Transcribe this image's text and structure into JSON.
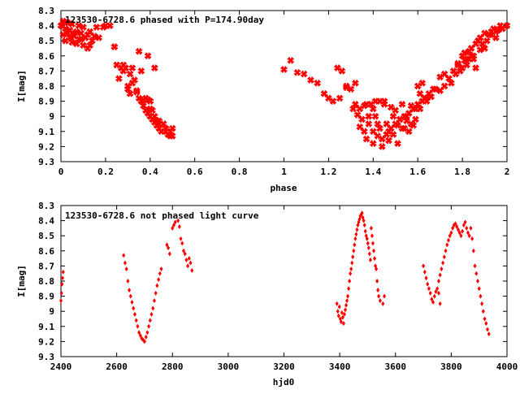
{
  "chart_data": [
    {
      "type": "scatter",
      "title": "123530-6728.6 phased with P=174.90day",
      "xlabel": "phase",
      "ylabel": "I[mag]",
      "xlim": [
        0,
        2
      ],
      "ylim": [
        8.3,
        9.3
      ],
      "y_inverted": true,
      "x_ticks": [
        "0",
        "0.2",
        "0.4",
        "0.6",
        "0.8",
        "1",
        "1.2",
        "1.4",
        "1.6",
        "1.8",
        "2"
      ],
      "y_ticks": [
        "8.3",
        "8.4",
        "8.5",
        "8.6",
        "8.7",
        "8.8",
        "8.9",
        "9",
        "9.1",
        "9.2",
        "9.3"
      ],
      "marker": "star",
      "color": "#ff0000",
      "series": [
        {
          "x": [
            0.0,
            0.01,
            0.01,
            0.02,
            0.02,
            0.03,
            0.03,
            0.04,
            0.04,
            0.05,
            0.05,
            0.06,
            0.07,
            0.07,
            0.08,
            0.08,
            0.09,
            0.1,
            0.1,
            0.11,
            0.12,
            0.12,
            0.13,
            0.14,
            0.15,
            0.17,
            0.19,
            0.22,
            0.24,
            0.25,
            0.27,
            0.28,
            0.3,
            0.31,
            0.32,
            0.34,
            0.35,
            0.36,
            0.37,
            0.38,
            0.39,
            0.4,
            0.4,
            0.41,
            0.42,
            0.43,
            0.44,
            0.45,
            0.46,
            0.47,
            0.48,
            0.49,
            0.5,
            0.5,
            0.29,
            0.31,
            0.33,
            0.34,
            0.36,
            0.37,
            0.38,
            0.39,
            0.4,
            0.41,
            0.42,
            0.43,
            0.44,
            0.35,
            0.39,
            0.42,
            0.02,
            0.05,
            0.09,
            0.13,
            0.16,
            0.2,
            0.24,
            0.28,
            0.32,
            0.36,
            0.4,
            0.44,
            0.47,
            0.49,
            0.26,
            0.3,
            1.0,
            1.03,
            1.06,
            1.09,
            1.12,
            1.15,
            1.18,
            1.2,
            1.22,
            1.24,
            1.26,
            1.28,
            1.3,
            1.31,
            1.32,
            1.33,
            1.34,
            1.35,
            1.36,
            1.37,
            1.38,
            1.39,
            1.4,
            1.4,
            1.41,
            1.42,
            1.43,
            1.44,
            1.45,
            1.46,
            1.47,
            1.48,
            1.49,
            1.5,
            1.51,
            1.52,
            1.53,
            1.54,
            1.55,
            1.56,
            1.57,
            1.58,
            1.59,
            1.6,
            1.61,
            1.62,
            1.64,
            1.66,
            1.68,
            1.7,
            1.72,
            1.74,
            1.76,
            1.77,
            1.78,
            1.79,
            1.8,
            1.81,
            1.82,
            1.83,
            1.84,
            1.85,
            1.86,
            1.87,
            1.88,
            1.89,
            1.9,
            1.91,
            1.92,
            1.93,
            1.94,
            1.95,
            1.96,
            1.97,
            1.98,
            2.0,
            1.36,
            1.38,
            1.4,
            1.42,
            1.44,
            1.46,
            1.48,
            1.5,
            1.52,
            1.54,
            1.56,
            1.58,
            1.6,
            1.62,
            1.64,
            1.34,
            1.37,
            1.41,
            1.45,
            1.49,
            1.53,
            1.57,
            1.61,
            1.65,
            1.7,
            1.75,
            1.8,
            1.85,
            1.9,
            1.95,
            1.25,
            1.28,
            1.32,
            1.43,
            1.47,
            1.51,
            1.55,
            1.59,
            1.63,
            1.67,
            1.72,
            1.78,
            1.83,
            1.88,
            1.93,
            1.81,
            1.84,
            1.86,
            1.79,
            1.82
          ],
          "y": [
            8.4,
            8.46,
            8.37,
            8.42,
            8.5,
            8.38,
            8.45,
            8.48,
            8.43,
            8.51,
            8.39,
            8.47,
            8.44,
            8.52,
            8.4,
            8.49,
            8.45,
            8.53,
            8.41,
            8.48,
            8.46,
            8.55,
            8.44,
            8.5,
            8.47,
            8.48,
            8.41,
            8.4,
            8.54,
            8.66,
            8.68,
            8.7,
            8.8,
            8.85,
            8.78,
            8.84,
            8.88,
            8.9,
            8.93,
            8.96,
            8.98,
            9.0,
            8.95,
            9.02,
            9.04,
            9.06,
            9.08,
            9.1,
            9.05,
            9.08,
            9.12,
            9.1,
            9.13,
            9.08,
            8.68,
            8.72,
            8.76,
            8.83,
            8.9,
            8.89,
            8.88,
            8.89,
            8.9,
            8.96,
            9.0,
            9.03,
            9.05,
            8.57,
            8.6,
            8.68,
            8.38,
            8.45,
            8.49,
            8.53,
            8.41,
            8.4,
            8.54,
            8.66,
            8.68,
            8.7,
            8.9,
            9.03,
            9.1,
            9.13,
            8.75,
            8.82,
            8.69,
            8.63,
            8.71,
            8.72,
            8.76,
            8.78,
            8.85,
            8.88,
            8.9,
            8.68,
            8.7,
            8.81,
            8.82,
            8.95,
            8.92,
            8.99,
            9.07,
            9.02,
            9.1,
            9.15,
            9.05,
            8.92,
            8.95,
            9.18,
            9.0,
            9.13,
            9.08,
            9.2,
            8.9,
            9.05,
            9.16,
            8.94,
            9.12,
            8.96,
            9.18,
            9.02,
            8.92,
            9.08,
            9.03,
            9.1,
            8.93,
            9.06,
            8.95,
            8.8,
            8.85,
            8.78,
            8.9,
            8.87,
            8.82,
            8.74,
            8.8,
            8.75,
            8.7,
            8.72,
            8.65,
            8.68,
            8.6,
            8.58,
            8.62,
            8.57,
            8.55,
            8.6,
            8.52,
            8.5,
            8.48,
            8.52,
            8.45,
            8.5,
            8.46,
            8.44,
            8.42,
            8.44,
            8.43,
            8.4,
            8.42,
            8.4,
            8.93,
            9.0,
            9.1,
            9.05,
            9.15,
            9.12,
            9.08,
            9.05,
            9.02,
            9.0,
            8.98,
            8.95,
            8.92,
            8.9,
            8.88,
            8.95,
            8.92,
            8.9,
            8.92,
            9.0,
            9.08,
            9.05,
            8.95,
            8.85,
            8.83,
            8.78,
            8.68,
            8.62,
            8.55,
            8.48,
            8.88,
            8.8,
            8.78,
            8.9,
            9.1,
            9.06,
            9.0,
            9.02,
            8.88,
            8.82,
            8.72,
            8.66,
            8.62,
            8.56,
            8.46,
            8.63,
            8.6,
            8.68,
            8.7,
            8.66
          ]
        }
      ]
    },
    {
      "type": "scatter",
      "title": "123530-6728.6 not phased light curve",
      "xlabel": "hjd0",
      "ylabel": "I[mag]",
      "xlim": [
        2400,
        4000
      ],
      "ylim": [
        8.3,
        9.3
      ],
      "y_inverted": true,
      "x_ticks": [
        "2400",
        "2600",
        "2800",
        "3000",
        "3200",
        "3400",
        "3600",
        "3800",
        "4000"
      ],
      "y_ticks": [
        "8.3",
        "8.4",
        "8.5",
        "8.6",
        "8.7",
        "8.8",
        "8.9",
        "9",
        "9.1",
        "9.2",
        "9.3"
      ],
      "marker": "diamond",
      "color": "#ff0000",
      "series": [
        {
          "x": [
            2400,
            2402,
            2404,
            2406,
            2408,
            2625,
            2630,
            2635,
            2640,
            2645,
            2650,
            2655,
            2660,
            2665,
            2670,
            2675,
            2680,
            2685,
            2690,
            2695,
            2700,
            2705,
            2710,
            2715,
            2720,
            2725,
            2730,
            2735,
            2740,
            2745,
            2750,
            2755,
            2760,
            2780,
            2785,
            2790,
            2800,
            2805,
            2810,
            2820,
            2825,
            2830,
            2835,
            2840,
            2845,
            2850,
            2855,
            2860,
            2865,
            2870,
            3390,
            3393,
            3396,
            3399,
            3402,
            3405,
            3408,
            3411,
            3414,
            3417,
            3420,
            3423,
            3426,
            3429,
            3432,
            3435,
            3438,
            3441,
            3444,
            3447,
            3450,
            3453,
            3456,
            3459,
            3462,
            3465,
            3468,
            3471,
            3474,
            3477,
            3480,
            3483,
            3486,
            3489,
            3492,
            3495,
            3498,
            3501,
            3504,
            3507,
            3510,
            3513,
            3516,
            3519,
            3522,
            3525,
            3528,
            3531,
            3534,
            3537,
            3540,
            3545,
            3555,
            3560,
            3700,
            3705,
            3710,
            3715,
            3720,
            3725,
            3730,
            3735,
            3740,
            3745,
            3750,
            3755,
            3760,
            3765,
            3770,
            3775,
            3780,
            3785,
            3790,
            3795,
            3800,
            3805,
            3810,
            3815,
            3820,
            3825,
            3830,
            3835,
            3840,
            3845,
            3850,
            3855,
            3860,
            3865,
            3870,
            3875,
            3880,
            3885,
            3890,
            3895,
            3900,
            3905,
            3910,
            3915,
            3920,
            3925,
            3930,
            3935,
            3755,
            3760
          ],
          "y": [
            8.93,
            8.88,
            8.82,
            8.78,
            8.74,
            8.63,
            8.68,
            8.72,
            8.8,
            8.86,
            8.9,
            8.94,
            8.98,
            9.02,
            9.06,
            9.1,
            9.14,
            9.16,
            9.18,
            9.19,
            9.2,
            9.17,
            9.14,
            9.1,
            9.06,
            9.02,
            8.98,
            8.93,
            8.88,
            8.83,
            8.79,
            8.75,
            8.72,
            8.56,
            8.58,
            8.62,
            8.45,
            8.43,
            8.41,
            8.4,
            8.44,
            8.52,
            8.55,
            8.6,
            8.62,
            8.66,
            8.7,
            8.65,
            8.68,
            8.73,
            8.95,
            9.0,
            9.03,
            8.97,
            9.05,
            9.07,
            9.01,
            9.04,
            9.08,
            9.02,
            8.99,
            8.96,
            8.93,
            8.9,
            8.85,
            8.8,
            8.75,
            8.72,
            8.68,
            8.64,
            8.6,
            8.56,
            8.52,
            8.49,
            8.46,
            8.43,
            8.41,
            8.39,
            8.37,
            8.36,
            8.35,
            8.38,
            8.4,
            8.43,
            8.47,
            8.5,
            8.52,
            8.55,
            8.58,
            8.62,
            8.66,
            8.45,
            8.5,
            8.55,
            8.6,
            8.65,
            8.7,
            8.72,
            8.8,
            8.86,
            8.9,
            8.93,
            8.95,
            8.9,
            8.7,
            8.74,
            8.78,
            8.82,
            8.85,
            8.88,
            8.92,
            8.94,
            8.9,
            8.87,
            8.85,
            8.8,
            8.76,
            8.72,
            8.68,
            8.64,
            8.6,
            8.56,
            8.53,
            8.5,
            8.48,
            8.45,
            8.43,
            8.42,
            8.44,
            8.46,
            8.48,
            8.5,
            8.47,
            8.43,
            8.41,
            8.45,
            8.48,
            8.5,
            8.45,
            8.52,
            8.6,
            8.7,
            8.75,
            8.8,
            8.85,
            8.9,
            8.95,
            9.0,
            9.05,
            9.08,
            9.12,
            9.15,
            8.88,
            8.95
          ]
        }
      ]
    }
  ]
}
